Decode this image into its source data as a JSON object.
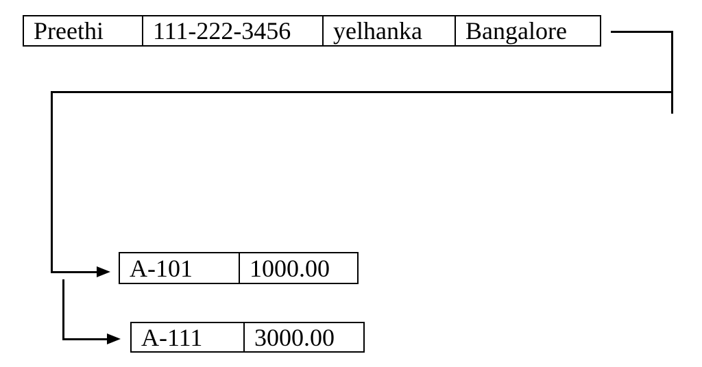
{
  "customer_record": {
    "cells": [
      "Preethi",
      "111-222-3456",
      "yelhanka",
      "Bangalore"
    ]
  },
  "account_records": [
    {
      "cells": [
        "A-101",
        "1000.00"
      ]
    },
    {
      "cells": [
        "A-111",
        "3000.00"
      ]
    }
  ],
  "colors": {
    "line": "#000000",
    "background": "#ffffff"
  }
}
